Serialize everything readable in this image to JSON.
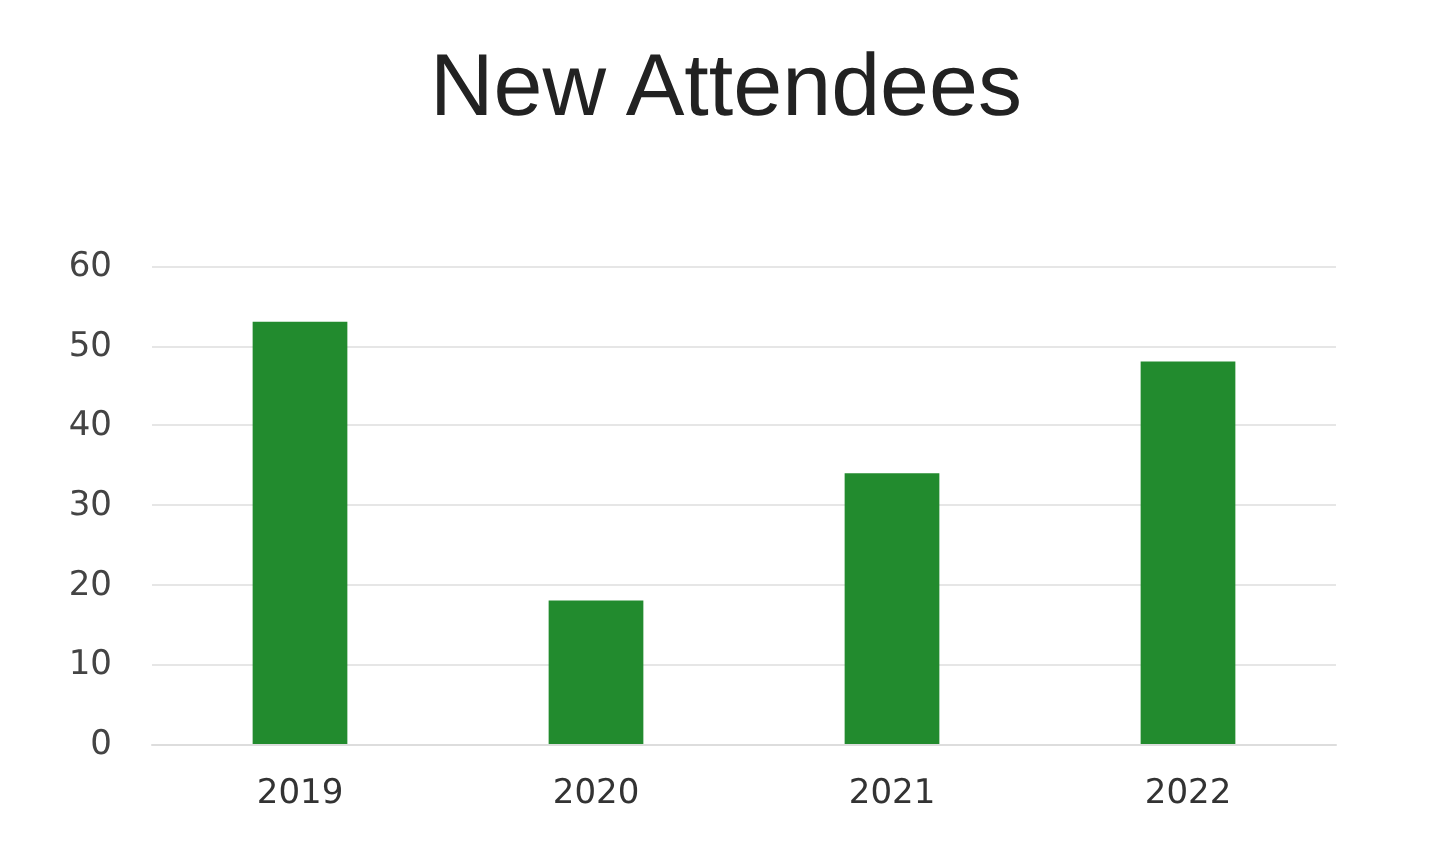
{
  "chart_data": {
    "type": "bar",
    "title": "New Attendees",
    "categories": [
      "2019",
      "2020",
      "2021",
      "2022"
    ],
    "values": [
      53,
      18,
      34,
      48
    ],
    "color": "#228b2e",
    "ylim": [
      0,
      60
    ],
    "yticks": [
      0,
      10,
      20,
      30,
      40,
      50,
      60
    ],
    "grid": "y"
  }
}
